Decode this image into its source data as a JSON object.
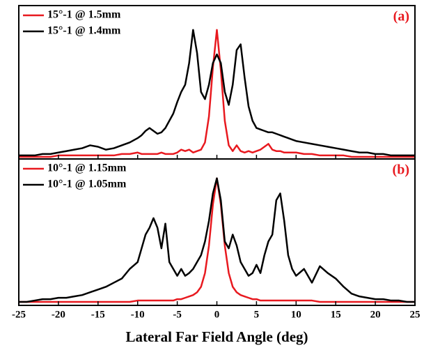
{
  "chart_data": [
    {
      "type": "line",
      "panel_label": "(a)",
      "panel_label_color": "#e8191f",
      "legend": "upper left",
      "xlim": [
        -25,
        25
      ],
      "xticks": [
        -25,
        -20,
        -15,
        -10,
        -5,
        0,
        5,
        10,
        15,
        20,
        25
      ],
      "ylim": [
        0,
        1
      ],
      "x": [
        -25,
        -24,
        -23,
        -22,
        -21,
        -20,
        -19,
        -18,
        -17,
        -16,
        -15,
        -14,
        -13,
        -12,
        -11,
        -10,
        -9.5,
        -9,
        -8.5,
        -8,
        -7.5,
        -7,
        -6.5,
        -6,
        -5.5,
        -5,
        -4.5,
        -4,
        -3.5,
        -3,
        -2.5,
        -2,
        -1.5,
        -1,
        -0.5,
        0,
        0.5,
        1,
        1.5,
        2,
        2.5,
        3,
        3.5,
        4,
        4.5,
        5,
        5.5,
        6,
        6.5,
        7,
        7.5,
        8,
        8.5,
        9,
        9.5,
        10,
        11,
        12,
        13,
        14,
        15,
        16,
        17,
        18,
        19,
        20,
        21,
        22,
        23,
        24,
        25
      ],
      "series": [
        {
          "name": "15°-1 @ 1.5mm",
          "color": "#e8191f",
          "values": [
            0,
            0,
            0,
            0,
            0,
            0.01,
            0.01,
            0.01,
            0.01,
            0.01,
            0.01,
            0.01,
            0.01,
            0.02,
            0.02,
            0.03,
            0.02,
            0.02,
            0.02,
            0.02,
            0.02,
            0.03,
            0.02,
            0.02,
            0.02,
            0.03,
            0.05,
            0.04,
            0.05,
            0.03,
            0.04,
            0.05,
            0.1,
            0.28,
            0.62,
            0.88,
            0.6,
            0.25,
            0.08,
            0.04,
            0.08,
            0.04,
            0.03,
            0.04,
            0.03,
            0.04,
            0.05,
            0.07,
            0.09,
            0.05,
            0.04,
            0.04,
            0.03,
            0.03,
            0.03,
            0.03,
            0.02,
            0.02,
            0.01,
            0.01,
            0.01,
            0.01,
            0,
            0,
            0,
            0,
            0,
            0,
            0,
            0,
            0
          ]
        },
        {
          "name": "15°-1 @ 1.4mm",
          "color": "#000000",
          "values": [
            0.01,
            0.01,
            0.01,
            0.02,
            0.02,
            0.03,
            0.04,
            0.05,
            0.06,
            0.08,
            0.07,
            0.05,
            0.06,
            0.08,
            0.1,
            0.13,
            0.15,
            0.18,
            0.2,
            0.18,
            0.16,
            0.17,
            0.2,
            0.25,
            0.3,
            0.38,
            0.45,
            0.5,
            0.65,
            0.88,
            0.72,
            0.45,
            0.4,
            0.5,
            0.65,
            0.71,
            0.65,
            0.45,
            0.36,
            0.5,
            0.74,
            0.78,
            0.55,
            0.35,
            0.25,
            0.2,
            0.19,
            0.18,
            0.17,
            0.17,
            0.16,
            0.15,
            0.14,
            0.13,
            0.12,
            0.11,
            0.1,
            0.09,
            0.08,
            0.07,
            0.06,
            0.05,
            0.04,
            0.03,
            0.03,
            0.02,
            0.02,
            0.01,
            0.01,
            0.01,
            0.01
          ]
        }
      ]
    },
    {
      "type": "line",
      "panel_label": "(b)",
      "panel_label_color": "#e8191f",
      "legend": "upper left",
      "xlim": [
        -25,
        25
      ],
      "xticks": [
        -25,
        -20,
        -15,
        -10,
        -5,
        0,
        5,
        10,
        15,
        20,
        25
      ],
      "ylim": [
        0,
        1
      ],
      "xlabel": "Lateral Far Field Angle (deg)",
      "x": [
        -25,
        -24,
        -23,
        -22,
        -21,
        -20,
        -19,
        -18,
        -17,
        -16,
        -15,
        -14,
        -13,
        -12,
        -11,
        -10,
        -9.5,
        -9,
        -8.5,
        -8,
        -7.5,
        -7,
        -6.5,
        -6,
        -5.5,
        -5,
        -4.5,
        -4,
        -3.5,
        -3,
        -2.5,
        -2,
        -1.5,
        -1,
        -0.5,
        0,
        0.5,
        1,
        1.5,
        2,
        2.5,
        3,
        3.5,
        4,
        4.5,
        5,
        5.5,
        6,
        6.5,
        7,
        7.5,
        8,
        8.5,
        9,
        9.5,
        10,
        11,
        12,
        13,
        14,
        15,
        16,
        17,
        18,
        19,
        20,
        21,
        22,
        23,
        24,
        25
      ],
      "series": [
        {
          "name": "10°-1 @ 1.15mm",
          "color": "#e8191f",
          "values": [
            0.01,
            0.01,
            0.01,
            0.01,
            0.01,
            0.01,
            0.01,
            0.01,
            0.01,
            0.01,
            0.01,
            0.01,
            0.01,
            0.01,
            0.01,
            0.02,
            0.02,
            0.02,
            0.02,
            0.02,
            0.02,
            0.02,
            0.02,
            0.02,
            0.02,
            0.03,
            0.03,
            0.04,
            0.05,
            0.06,
            0.08,
            0.12,
            0.22,
            0.42,
            0.72,
            0.91,
            0.72,
            0.42,
            0.22,
            0.12,
            0.08,
            0.06,
            0.05,
            0.04,
            0.03,
            0.03,
            0.02,
            0.02,
            0.02,
            0.02,
            0.02,
            0.02,
            0.02,
            0.02,
            0.02,
            0.02,
            0.02,
            0.02,
            0.01,
            0.01,
            0.01,
            0.01,
            0.01,
            0.01,
            0.01,
            0.01,
            0.01,
            0.01,
            0.01,
            0.01,
            0.01
          ]
        },
        {
          "name": "10°-1 @ 1.05mm",
          "color": "#000000",
          "values": [
            0.01,
            0.01,
            0.02,
            0.03,
            0.03,
            0.04,
            0.04,
            0.05,
            0.06,
            0.08,
            0.1,
            0.12,
            0.15,
            0.18,
            0.25,
            0.3,
            0.4,
            0.5,
            0.55,
            0.62,
            0.55,
            0.4,
            0.58,
            0.3,
            0.25,
            0.2,
            0.25,
            0.2,
            0.22,
            0.25,
            0.3,
            0.35,
            0.45,
            0.6,
            0.8,
            0.91,
            0.75,
            0.45,
            0.4,
            0.5,
            0.42,
            0.3,
            0.25,
            0.2,
            0.22,
            0.28,
            0.22,
            0.35,
            0.45,
            0.5,
            0.75,
            0.8,
            0.6,
            0.35,
            0.25,
            0.2,
            0.25,
            0.15,
            0.27,
            0.22,
            0.18,
            0.12,
            0.07,
            0.05,
            0.04,
            0.03,
            0.03,
            0.02,
            0.02,
            0.01,
            0.01
          ]
        }
      ]
    }
  ]
}
